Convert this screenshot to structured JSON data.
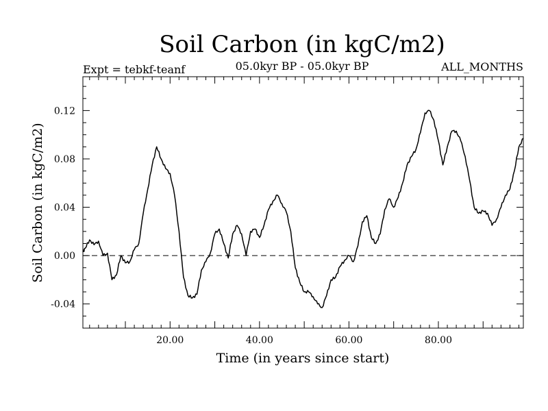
{
  "chart_data": {
    "type": "line",
    "title": "Soil Carbon (in kgC/m2)",
    "subtitle": "05.0kyr BP - 05.0kyr BP",
    "left_label": "Expt = tebkf-teanf",
    "right_label": "ALL_MONTHS",
    "xlabel": "Time (in years since start)",
    "ylabel": "Soil Carbon (in kgC/m2)",
    "xlim": [
      0.5,
      99
    ],
    "ylim": [
      -0.06,
      0.148
    ],
    "x_ticks": [
      {
        "value": 20,
        "label": "20.00"
      },
      {
        "value": 40,
        "label": "40.00"
      },
      {
        "value": 60,
        "label": "60.00"
      },
      {
        "value": 80,
        "label": "80.00"
      }
    ],
    "y_ticks": [
      {
        "value": 0.12,
        "label": "0.12"
      },
      {
        "value": 0.08,
        "label": "0.08"
      },
      {
        "value": 0.04,
        "label": "0.04"
      },
      {
        "value": 0.0,
        "label": "0.00"
      },
      {
        "value": -0.04,
        "label": "-0.04"
      }
    ],
    "reference_line": {
      "y": 0.0,
      "style": "dashed"
    },
    "series": [
      {
        "name": "Soil Carbon",
        "x": [
          0.5,
          1,
          2,
          3,
          4,
          5,
          6,
          7,
          8,
          9,
          10,
          11,
          12,
          13,
          14,
          15,
          16,
          17,
          18,
          19,
          20,
          21,
          22,
          23,
          24,
          25,
          26,
          27,
          28,
          29,
          30,
          31,
          32,
          33,
          34,
          35,
          36,
          37,
          38,
          39,
          40,
          41,
          42,
          43,
          44,
          45,
          46,
          47,
          48,
          49,
          50,
          51,
          52,
          53,
          54,
          55,
          56,
          57,
          58,
          59,
          60,
          61,
          62,
          63,
          64,
          65,
          66,
          67,
          68,
          69,
          70,
          71,
          72,
          73,
          74,
          75,
          76,
          77,
          78,
          79,
          80,
          81,
          82,
          83,
          84,
          85,
          86,
          87,
          88,
          89,
          90,
          91,
          92,
          93,
          94,
          95,
          96,
          97,
          98,
          99
        ],
        "y": [
          0.003,
          0.006,
          0.013,
          0.009,
          0.012,
          0.0,
          0.002,
          -0.02,
          -0.016,
          0.0,
          -0.006,
          -0.005,
          0.005,
          0.01,
          0.035,
          0.055,
          0.075,
          0.09,
          0.08,
          0.072,
          0.068,
          0.05,
          0.02,
          -0.018,
          -0.033,
          -0.035,
          -0.032,
          -0.012,
          -0.005,
          0.002,
          0.018,
          0.022,
          0.01,
          -0.002,
          0.018,
          0.025,
          0.018,
          0.0,
          0.02,
          0.022,
          0.015,
          0.025,
          0.038,
          0.045,
          0.05,
          0.043,
          0.036,
          0.02,
          -0.01,
          -0.022,
          -0.03,
          -0.03,
          -0.034,
          -0.04,
          -0.043,
          -0.033,
          -0.02,
          -0.018,
          -0.009,
          -0.004,
          0.0,
          -0.005,
          0.008,
          0.028,
          0.033,
          0.015,
          0.01,
          0.018,
          0.038,
          0.047,
          0.04,
          0.048,
          0.06,
          0.075,
          0.082,
          0.088,
          0.102,
          0.118,
          0.12,
          0.112,
          0.095,
          0.075,
          0.09,
          0.103,
          0.103,
          0.095,
          0.082,
          0.062,
          0.04,
          0.035,
          0.037,
          0.035,
          0.025,
          0.03,
          0.04,
          0.05,
          0.055,
          0.07,
          0.09,
          0.097
        ]
      }
    ]
  }
}
